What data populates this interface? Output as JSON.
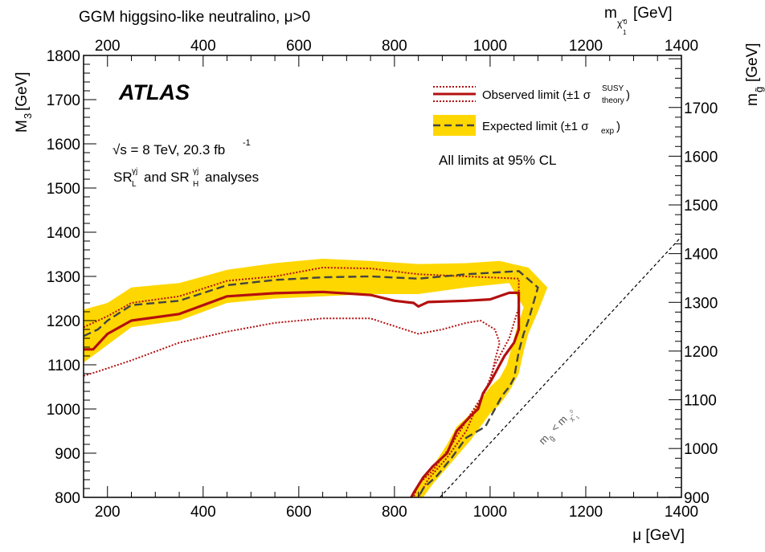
{
  "chart_data": {
    "type": "line",
    "top_title": "GGM higgsino-like neutralino, μ>0",
    "xlabel": "μ [GeV]",
    "ylabel": "M3 [GeV]",
    "top_axis_label": "m χ̃01 [GeV]",
    "right_axis_label": "m g̃ [GeV]",
    "xlim": [
      150,
      1400
    ],
    "ylim": [
      800,
      1800
    ],
    "x_ticks": [
      200,
      400,
      600,
      800,
      1000,
      1200,
      1400
    ],
    "y_ticks": [
      800,
      900,
      1000,
      1100,
      1200,
      1300,
      1400,
      1500,
      1600,
      1700,
      1800
    ],
    "top_ticks": [
      200,
      400,
      600,
      800,
      1000,
      1200,
      1400
    ],
    "right_ticks": [
      900,
      1000,
      1100,
      1200,
      1300,
      1400,
      1500,
      1600,
      1700
    ],
    "atlas_label": "ATLAS",
    "energy_label": "√s = 8 TeV, 20.3 fb-1",
    "analyses_label": "SRγj_L and SRγj_H analyses",
    "cl_note": "All limits at 95% CL",
    "diagonal_label": "m g̃ < m χ̃01",
    "legend": {
      "observed": "Observed limit (±1 σ SUSY theory)",
      "expected": "Expected limit (±1 σ exp)"
    },
    "colors": {
      "observed": "#b40f0f",
      "band": "#ffd700",
      "expected": "#444444",
      "diagonal": "#000000"
    },
    "series": [
      {
        "name": "Observed limit",
        "points": [
          [
            150,
            1135
          ],
          [
            170,
            1135
          ],
          [
            200,
            1170
          ],
          [
            250,
            1200
          ],
          [
            350,
            1215
          ],
          [
            450,
            1255
          ],
          [
            550,
            1262
          ],
          [
            650,
            1265
          ],
          [
            750,
            1258
          ],
          [
            800,
            1245
          ],
          [
            840,
            1240
          ],
          [
            850,
            1232
          ],
          [
            870,
            1242
          ],
          [
            950,
            1245
          ],
          [
            1000,
            1248
          ],
          [
            1040,
            1263
          ],
          [
            1060,
            1263
          ],
          [
            1060,
            1180
          ],
          [
            1050,
            1150
          ],
          [
            1030,
            1120
          ],
          [
            1010,
            1080
          ],
          [
            1000,
            1060
          ],
          [
            985,
            1035
          ],
          [
            975,
            1000
          ],
          [
            960,
            985
          ],
          [
            930,
            950
          ],
          [
            910,
            900
          ],
          [
            880,
            870
          ],
          [
            860,
            845
          ],
          [
            840,
            810
          ],
          [
            835,
            800
          ]
        ]
      },
      {
        "name": "Observed +1σ theory",
        "points": [
          [
            150,
            1185
          ],
          [
            200,
            1210
          ],
          [
            250,
            1240
          ],
          [
            350,
            1255
          ],
          [
            450,
            1290
          ],
          [
            550,
            1300
          ],
          [
            650,
            1320
          ],
          [
            750,
            1318
          ],
          [
            850,
            1305
          ],
          [
            950,
            1300
          ],
          [
            1060,
            1295
          ],
          [
            1060,
            1230
          ],
          [
            1040,
            1160
          ],
          [
            1010,
            1100
          ],
          [
            990,
            1040
          ],
          [
            960,
            990
          ],
          [
            920,
            920
          ],
          [
            880,
            860
          ],
          [
            850,
            830
          ],
          [
            840,
            800
          ]
        ]
      },
      {
        "name": "Observed -1σ theory",
        "points": [
          [
            150,
            1075
          ],
          [
            180,
            1085
          ],
          [
            250,
            1110
          ],
          [
            350,
            1150
          ],
          [
            450,
            1175
          ],
          [
            550,
            1195
          ],
          [
            650,
            1205
          ],
          [
            750,
            1205
          ],
          [
            850,
            1170
          ],
          [
            900,
            1180
          ],
          [
            950,
            1195
          ],
          [
            980,
            1200
          ],
          [
            1010,
            1180
          ],
          [
            1020,
            1150
          ],
          [
            1010,
            1110
          ],
          [
            1000,
            1060
          ],
          [
            990,
            1045
          ],
          [
            970,
            1000
          ],
          [
            950,
            950
          ],
          [
            910,
            890
          ],
          [
            870,
            840
          ],
          [
            850,
            800
          ]
        ]
      },
      {
        "name": "Expected limit",
        "points": [
          [
            150,
            1165
          ],
          [
            180,
            1180
          ],
          [
            200,
            1200
          ],
          [
            250,
            1235
          ],
          [
            350,
            1245
          ],
          [
            450,
            1280
          ],
          [
            550,
            1292
          ],
          [
            650,
            1298
          ],
          [
            750,
            1300
          ],
          [
            850,
            1295
          ],
          [
            950,
            1305
          ],
          [
            1060,
            1312
          ],
          [
            1100,
            1275
          ],
          [
            1080,
            1200
          ],
          [
            1070,
            1170
          ],
          [
            1060,
            1130
          ],
          [
            1050,
            1070
          ],
          [
            1040,
            1050
          ],
          [
            1025,
            1030
          ],
          [
            1010,
            1000
          ],
          [
            990,
            960
          ],
          [
            950,
            935
          ],
          [
            920,
            890
          ],
          [
            890,
            850
          ],
          [
            860,
            820
          ],
          [
            850,
            800
          ]
        ]
      }
    ],
    "band": {
      "name": "Expected ±1σ exp",
      "upper": [
        [
          150,
          1225
        ],
        [
          200,
          1240
        ],
        [
          250,
          1275
        ],
        [
          350,
          1285
        ],
        [
          450,
          1315
        ],
        [
          550,
          1330
        ],
        [
          650,
          1340
        ],
        [
          750,
          1335
        ],
        [
          850,
          1328
        ],
        [
          950,
          1330
        ],
        [
          1020,
          1335
        ],
        [
          1080,
          1320
        ],
        [
          1120,
          1275
        ],
        [
          1100,
          1220
        ],
        [
          1080,
          1170
        ],
        [
          1070,
          1130
        ],
        [
          1060,
          1080
        ],
        [
          1040,
          1040
        ],
        [
          1020,
          1010
        ],
        [
          1000,
          990
        ],
        [
          980,
          960
        ],
        [
          960,
          930
        ],
        [
          920,
          880
        ],
        [
          880,
          830
        ],
        [
          860,
          800
        ]
      ],
      "lower": [
        [
          150,
          1105
        ],
        [
          200,
          1145
        ],
        [
          250,
          1185
        ],
        [
          350,
          1200
        ],
        [
          450,
          1240
        ],
        [
          550,
          1250
        ],
        [
          650,
          1255
        ],
        [
          750,
          1260
        ],
        [
          850,
          1260
        ],
        [
          950,
          1275
        ],
        [
          1040,
          1285
        ],
        [
          1070,
          1230
        ],
        [
          1055,
          1180
        ],
        [
          1045,
          1140
        ],
        [
          1035,
          1100
        ],
        [
          1020,
          1070
        ],
        [
          1000,
          1050
        ],
        [
          980,
          1020
        ],
        [
          960,
          990
        ],
        [
          930,
          960
        ],
        [
          910,
          920
        ],
        [
          880,
          870
        ],
        [
          850,
          830
        ],
        [
          840,
          800
        ]
      ]
    },
    "diagonal": [
      [
        895,
        800
      ],
      [
        1400,
        1390
      ]
    ]
  }
}
